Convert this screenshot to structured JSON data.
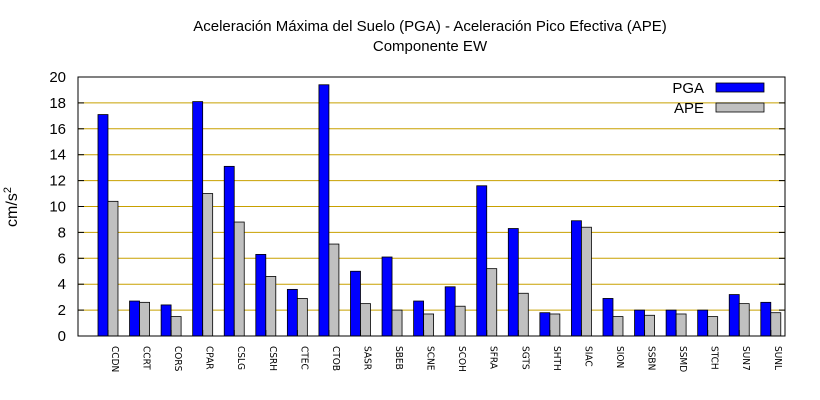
{
  "chart_data": {
    "type": "bar",
    "title": "Aceleración Máxima del Suelo (PGA) -  Aceleración Pico Efectiva (APE)",
    "subtitle": "Componente EW",
    "ylabel": "cm/s",
    "ylabel_sup": "2",
    "xlabel": "",
    "ylim": [
      0,
      20
    ],
    "yticks": [
      0,
      2,
      4,
      6,
      8,
      10,
      12,
      14,
      16,
      18,
      20
    ],
    "grid": true,
    "legend_position": "top-right",
    "categories": [
      "CCDN",
      "CCRT",
      "CORS",
      "CPAR",
      "CSLG",
      "CSRH",
      "CTEC",
      "CTOB",
      "SASR",
      "SBEB",
      "SCNE",
      "SCOH",
      "SFRA",
      "SGTS",
      "SHTH",
      "SIAC",
      "SION",
      "SSBN",
      "SSMD",
      "STCH",
      "SUN7",
      "SUNL"
    ],
    "series": [
      {
        "name": "PGA",
        "color": "#0000ff",
        "values": [
          17.1,
          2.7,
          2.4,
          18.1,
          13.1,
          6.3,
          3.6,
          19.4,
          5.0,
          6.1,
          2.7,
          3.8,
          11.6,
          8.3,
          1.8,
          8.9,
          2.9,
          2.0,
          2.0,
          2.0,
          3.2,
          2.6
        ]
      },
      {
        "name": "APE",
        "color": "#c0c0c0",
        "values": [
          10.4,
          2.6,
          1.5,
          11.0,
          8.8,
          4.6,
          2.9,
          7.1,
          2.5,
          2.0,
          1.7,
          2.3,
          5.2,
          3.3,
          1.7,
          8.4,
          1.5,
          1.6,
          1.7,
          1.5,
          2.5,
          1.8
        ]
      }
    ],
    "gridline_color": "#c8a000"
  }
}
